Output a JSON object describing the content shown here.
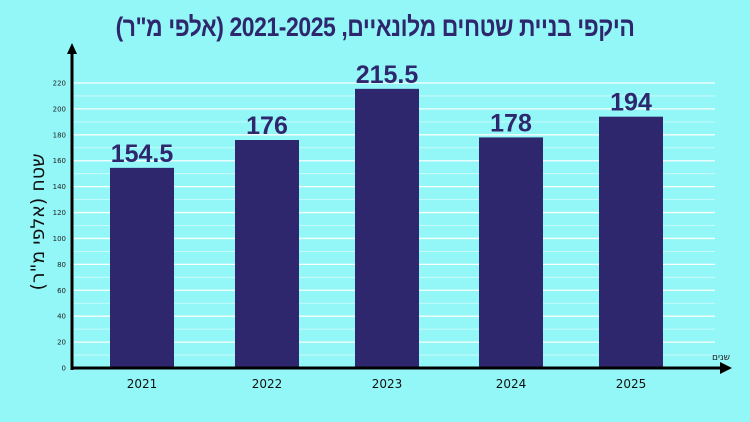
{
  "chart_data": {
    "type": "bar",
    "title": "היקפי בניית שטחים מלונאיים, 2021-2025 (אלפי מ\"ר)",
    "ylabel": "שטח (אלפי מ\"ר)",
    "xlabel": "שנים",
    "categories": [
      "2021",
      "2022",
      "2023",
      "2024",
      "2025"
    ],
    "values": [
      154.5,
      176,
      215.5,
      178,
      194
    ],
    "value_labels": [
      "154.5",
      "176",
      "215.5",
      "178",
      "194"
    ],
    "ylim": [
      0,
      220
    ],
    "yticks": [
      0,
      20,
      40,
      60,
      80,
      100,
      120,
      140,
      160,
      180,
      200,
      220
    ],
    "grid": true,
    "bar_color": "#2e276e",
    "background_color": "#94f7f7"
  }
}
